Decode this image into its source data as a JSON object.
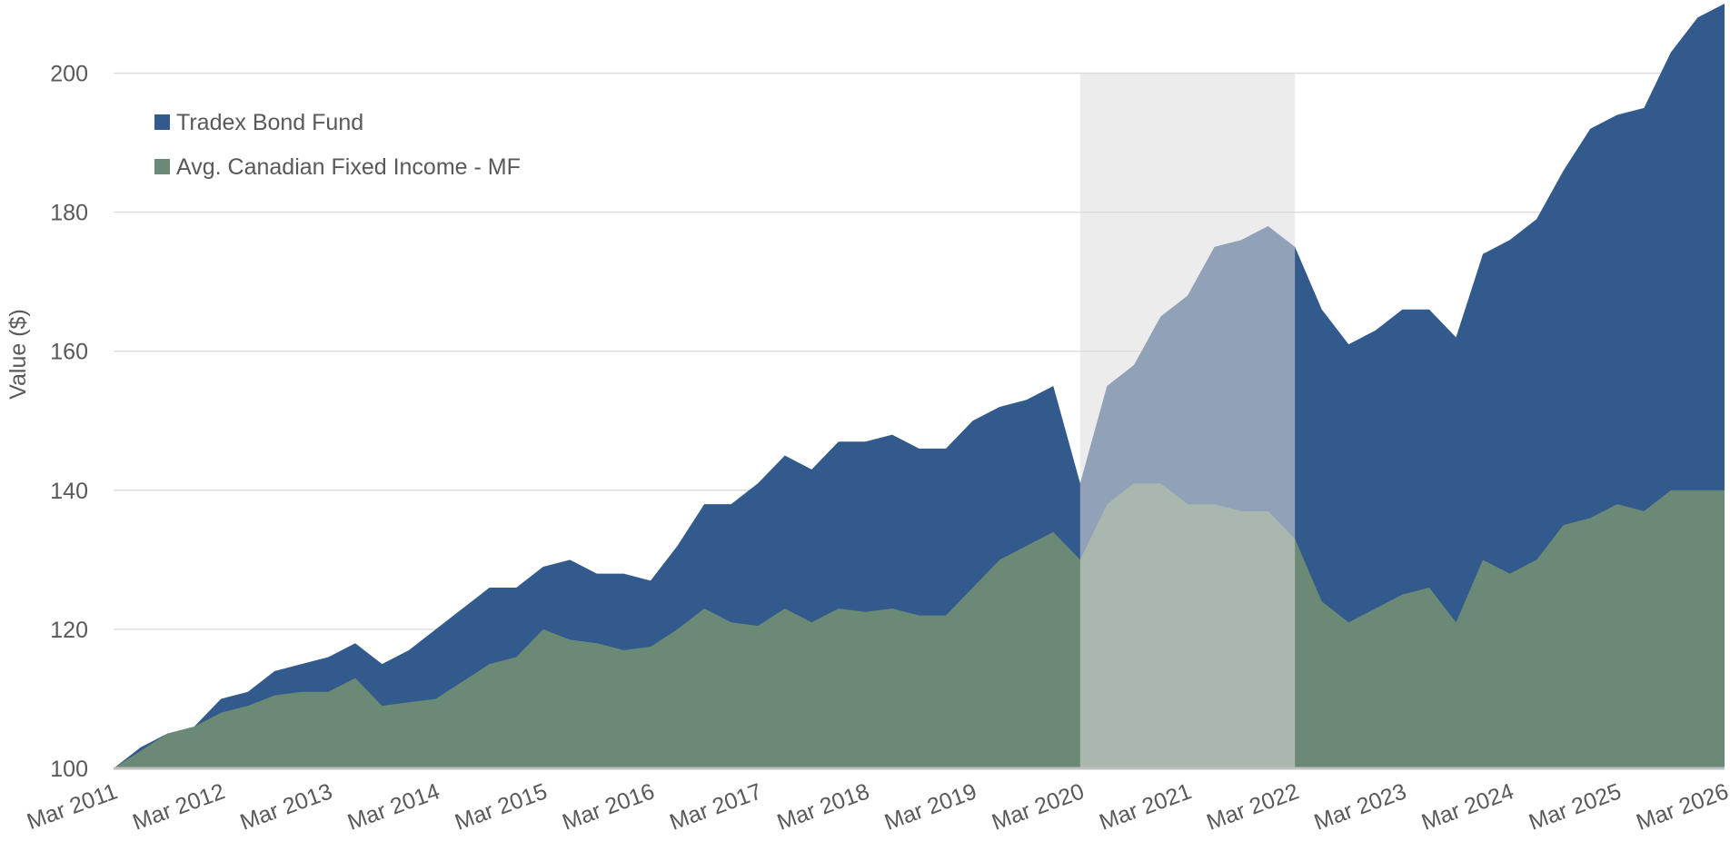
{
  "chart_data": {
    "type": "area",
    "ylabel": "Value ($)",
    "categories": [
      "Mar 2011",
      null,
      null,
      null,
      "Mar 2012",
      null,
      null,
      null,
      "Mar 2013",
      null,
      null,
      null,
      "Mar 2014",
      null,
      null,
      null,
      "Mar 2015",
      null,
      null,
      null,
      "Mar 2016",
      null,
      null,
      null,
      "Mar 2017",
      null,
      null,
      null,
      "Mar 2018",
      null,
      null,
      null,
      "Mar 2019",
      null,
      null,
      null,
      "Mar 2020",
      null,
      null,
      null,
      "Mar 2021",
      null,
      null,
      null,
      "Mar 2022",
      null,
      null,
      null,
      "Mar 2023",
      null,
      null,
      null,
      "Mar 2024",
      null,
      null,
      null,
      "Mar 2025",
      null,
      null,
      null,
      "Mar 2026"
    ],
    "series": [
      {
        "name": "Tradex Bond Fund",
        "color": "#335a8c",
        "values": [
          100,
          103,
          105,
          106,
          110,
          111,
          114,
          115,
          116,
          118,
          115,
          117,
          120,
          123,
          126,
          126,
          129,
          130,
          128,
          128,
          127,
          132,
          138,
          138,
          141,
          145,
          143,
          147,
          147,
          148,
          146,
          146,
          150,
          152,
          153,
          155,
          141,
          155,
          158,
          165,
          168,
          175,
          176,
          178,
          175,
          166,
          161,
          163,
          166,
          166,
          162,
          174,
          176,
          179,
          186,
          192,
          194,
          195,
          203,
          208,
          210
        ]
      },
      {
        "name": "Avg. Canadian Fixed Income - MF",
        "color": "#6b8a76",
        "values": [
          100,
          102.5,
          105,
          106,
          108,
          109,
          110.5,
          111,
          111,
          113,
          109,
          109.5,
          110,
          112.5,
          115,
          116,
          120,
          118.5,
          118,
          117,
          117.5,
          120,
          123,
          121,
          120.5,
          123,
          121,
          123,
          122.5,
          123,
          122,
          122,
          126,
          130,
          132,
          134,
          130,
          138,
          141,
          141,
          138,
          138,
          137,
          137,
          133,
          124,
          121,
          123,
          125,
          126,
          121,
          130,
          128,
          130,
          135,
          136,
          138,
          137,
          140,
          140,
          140
        ]
      }
    ],
    "highlight": {
      "from": 36,
      "to": 44,
      "top": 200,
      "color": "#dcdcdc"
    },
    "ylim": [
      100,
      210
    ],
    "yticks": [
      100,
      120,
      140,
      160,
      180,
      200
    ],
    "grid": true,
    "legend": "top-left"
  }
}
